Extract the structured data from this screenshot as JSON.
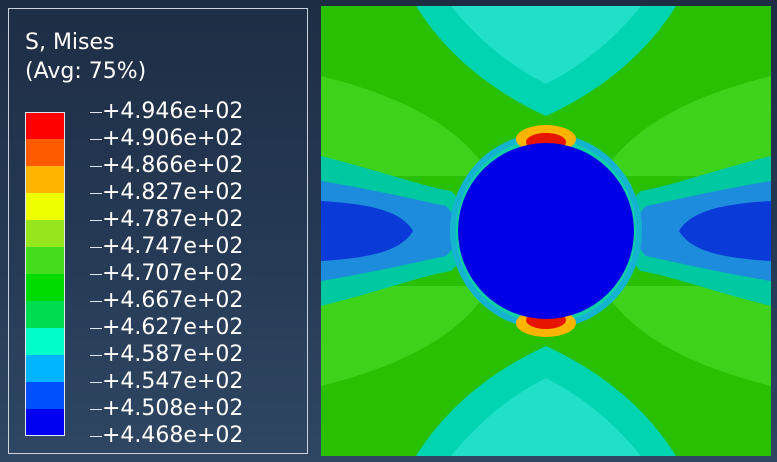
{
  "legend": {
    "title_line1": "S, Mises",
    "title_line2": "(Avg: 75%)",
    "levels": [
      {
        "label": "+4.946e+02",
        "color": "#ff0000"
      },
      {
        "label": "+4.906e+02",
        "color": "#ff5a00"
      },
      {
        "label": "+4.866e+02",
        "color": "#ffb400"
      },
      {
        "label": "+4.827e+02",
        "color": "#f0ff00"
      },
      {
        "label": "+4.787e+02",
        "color": "#96e61e"
      },
      {
        "label": "+4.747e+02",
        "color": "#46dc1e"
      },
      {
        "label": "+4.707e+02",
        "color": "#00dc00"
      },
      {
        "label": "+4.667e+02",
        "color": "#00dc50"
      },
      {
        "label": "+4.627e+02",
        "color": "#00ffc8"
      },
      {
        "label": "+4.587e+02",
        "color": "#00b4ff"
      },
      {
        "label": "+4.547e+02",
        "color": "#0050ff"
      },
      {
        "label": "+4.508e+02",
        "color": "#0000f0"
      },
      {
        "label": "+4.468e+02",
        "color": "#0000ff"
      }
    ]
  },
  "contour_colors": {
    "background": "#22c800",
    "top_bottom_zone": "#00d2b4",
    "side_blue": "#003cdc",
    "hole": "#0000e6",
    "hot": "#e61400"
  }
}
